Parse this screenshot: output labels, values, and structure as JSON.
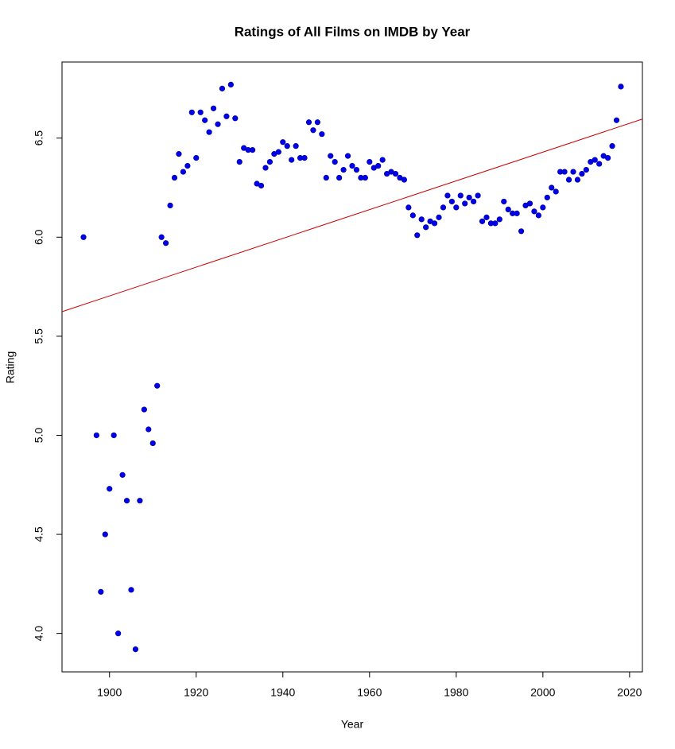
{
  "chart_data": {
    "type": "scatter",
    "title": "Ratings of All Films on IMDB by Year",
    "x_label": "Year",
    "y_label": "Rating",
    "color": "#0000ee",
    "x": [
      1894,
      1897,
      1898,
      1899,
      1900,
      1901,
      1902,
      1903,
      1904,
      1905,
      1906,
      1907,
      1908,
      1909,
      1910,
      1911,
      1912,
      1913,
      1914,
      1915,
      1916,
      1917,
      1918,
      1919,
      1920,
      1921,
      1922,
      1923,
      1924,
      1925,
      1926,
      1927,
      1928,
      1929,
      1930,
      1931,
      1932,
      1933,
      1934,
      1935,
      1936,
      1937,
      1938,
      1939,
      1940,
      1941,
      1942,
      1943,
      1944,
      1945,
      1946,
      1947,
      1948,
      1949,
      1950,
      1951,
      1952,
      1953,
      1954,
      1955,
      1956,
      1957,
      1958,
      1959,
      1960,
      1961,
      1962,
      1963,
      1964,
      1965,
      1966,
      1967,
      1968,
      1969,
      1970,
      1971,
      1972,
      1973,
      1974,
      1975,
      1976,
      1977,
      1978,
      1979,
      1980,
      1981,
      1982,
      1983,
      1984,
      1985,
      1986,
      1987,
      1988,
      1989,
      1990,
      1991,
      1992,
      1993,
      1994,
      1995,
      1996,
      1997,
      1998,
      1999,
      2000,
      2001,
      2002,
      2003,
      2004,
      2005,
      2006,
      2007,
      2008,
      2009,
      2010,
      2011,
      2012,
      2013,
      2014,
      2015,
      2016,
      2017,
      2018
    ],
    "values": [
      6.0,
      5.0,
      4.21,
      4.5,
      4.73,
      5.0,
      4.0,
      4.8,
      4.67,
      4.22,
      3.92,
      4.67,
      5.13,
      5.03,
      4.96,
      5.25,
      6.0,
      5.97,
      6.16,
      6.3,
      6.42,
      6.33,
      6.36,
      6.63,
      6.4,
      6.63,
      6.59,
      6.53,
      6.65,
      6.57,
      6.75,
      6.61,
      6.77,
      6.6,
      6.38,
      6.45,
      6.44,
      6.44,
      6.27,
      6.26,
      6.35,
      6.38,
      6.42,
      6.43,
      6.48,
      6.46,
      6.39,
      6.46,
      6.4,
      6.4,
      6.58,
      6.54,
      6.58,
      6.52,
      6.3,
      6.41,
      6.38,
      6.3,
      6.34,
      6.41,
      6.36,
      6.34,
      6.3,
      6.3,
      6.38,
      6.35,
      6.36,
      6.39,
      6.32,
      6.33,
      6.32,
      6.3,
      6.29,
      6.15,
      6.11,
      6.01,
      6.09,
      6.05,
      6.08,
      6.07,
      6.1,
      6.15,
      6.21,
      6.18,
      6.15,
      6.21,
      6.17,
      6.2,
      6.18,
      6.21,
      6.08,
      6.1,
      6.07,
      6.07,
      6.09,
      6.18,
      6.14,
      6.12,
      6.12,
      6.03,
      6.16,
      6.17,
      6.13,
      6.11,
      6.15,
      6.2,
      6.25,
      6.23,
      6.33,
      6.33,
      6.29,
      6.33,
      6.29,
      6.32,
      6.34,
      6.38,
      6.39,
      6.37,
      6.41,
      6.4,
      6.46,
      6.59,
      6.76
    ],
    "trend_line": {
      "x": [
        1889.04,
        2022.96
      ],
      "values": [
        5.624,
        6.596
      ],
      "color": "#cc0000"
    },
    "xlim": [
      1889.04,
      2022.96
    ],
    "ylim": [
      3.806,
      6.884
    ],
    "xticks": [
      1900,
      1920,
      1940,
      1960,
      1980,
      2000,
      2020
    ],
    "yticks": [
      {
        "value": 4,
        "label": "4.0"
      },
      4.5,
      {
        "value": 5,
        "label": "5.0"
      },
      5.5,
      {
        "value": 6,
        "label": "6.0"
      },
      6.5
    ]
  }
}
